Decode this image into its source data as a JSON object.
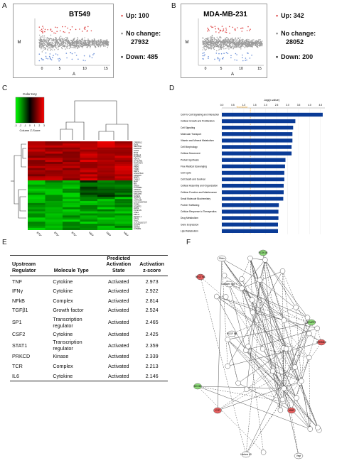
{
  "panels": {
    "A": {
      "letter": "A",
      "title": "BT549",
      "xlabel": "A",
      "ylabel": "M",
      "xticks": [
        "0",
        "5",
        "10",
        "15"
      ],
      "legend": [
        {
          "text": "Up: 100",
          "color": "#e05050"
        },
        {
          "text": "No change:",
          "color": "#888888"
        },
        {
          "text": "27932",
          "color": ""
        },
        {
          "text": "Down: 485",
          "color": "#222222"
        }
      ]
    },
    "B": {
      "letter": "B",
      "title": "MDA-MB-231",
      "xlabel": "A",
      "ylabel": "M",
      "xticks": [
        "0",
        "5",
        "10",
        "15"
      ],
      "legend": [
        {
          "text": "Up: 342",
          "color": "#e05050"
        },
        {
          "text": "No change:",
          "color": "#888888"
        },
        {
          "text": "28052",
          "color": ""
        },
        {
          "text": "Down: 200",
          "color": "#222222"
        }
      ]
    },
    "C": {
      "letter": "C",
      "color_key_title": "Color Key",
      "color_key_label": "Column Z-Score",
      "color_key_ticks": [
        "-3",
        "-2",
        "-1",
        "0",
        "1",
        "2",
        "3"
      ],
      "genes": [
        "CREB3L2",
        "EVSL",
        "NECTIN1",
        "KLHDC5",
        "LMLN",
        "MSI2",
        "DYNLL2",
        "PLPPR2",
        "ADAT1",
        "DYNLRB1",
        "RAPGAP2",
        "SNIP1",
        "PSIP1",
        "TDRD",
        "BMP2",
        "HSD17B10",
        "ADRA2C",
        "MMP3",
        "CHSL2",
        "MAP",
        "MN",
        "GNG6",
        "CYP26B1",
        "ATP10A",
        "FAM167A",
        "NRG2P8",
        "SUSD2",
        "NLRP10",
        "CORO2B",
        "LOC101927524",
        "ITGB2",
        "SCARF2",
        "LMO2",
        "PCSK1N",
        "USE1",
        "FBX11",
        "PCNA-L1",
        "EPN3",
        "GALC",
        "LOC101927277",
        "DUSP4",
        "OD460",
        "CYB4B1"
      ],
      "samples": [
        "BT549-01",
        "BT549-02",
        "BT549-03",
        "MDA-231-01",
        "MDA-231-02",
        "MDA-231-03"
      ]
    },
    "D": {
      "letter": "D",
      "axis_title": "-log(p-value)",
      "threshold_label": "Threshold",
      "xticks": [
        "0.0",
        "0.5",
        "1.0",
        "1.5",
        "2.0",
        "2.5",
        "3.0",
        "3.5",
        "4.0",
        "4.5"
      ]
    },
    "E": {
      "letter": "E",
      "headers": {
        "regulator": "Upstream Regulator",
        "type": "Molecule Type",
        "state": "Predicted Activation State",
        "zscore": "Activation z-score"
      },
      "rows": [
        {
          "regulator": "TNF",
          "type": "Cytokine",
          "state": "Activated",
          "zscore": "2.973"
        },
        {
          "regulator": "IFNγ",
          "type": "Cytokine",
          "state": "Activated",
          "zscore": "2.922"
        },
        {
          "regulator": "NFkB",
          "type": "Complex",
          "state": "Activated",
          "zscore": "2.814"
        },
        {
          "regulator": "TGFβ1",
          "type": "Growth factor",
          "state": "Activated",
          "zscore": "2.524"
        },
        {
          "regulator": "SP1",
          "type": "Transcription regulator",
          "state": "Activated",
          "zscore": "2.465"
        },
        {
          "regulator": "CSF2",
          "type": "Cytokine",
          "state": "Activated",
          "zscore": "2.425"
        },
        {
          "regulator": "STAT1",
          "type": "Transcription regulator",
          "state": "Activated",
          "zscore": "2.359"
        },
        {
          "regulator": "PRKCD",
          "type": "Kinase",
          "state": "Activated",
          "zscore": "2.339"
        },
        {
          "regulator": "TCR",
          "type": "Complex",
          "state": "Activated",
          "zscore": "2.213"
        },
        {
          "regulator": "IL6",
          "type": "Cytokine",
          "state": "Activated",
          "zscore": "2.146"
        }
      ]
    },
    "F": {
      "letter": "F",
      "nodes": [
        {
          "label": "PCSK1N",
          "kind": "green"
        },
        {
          "label": "Fibrin",
          "kind": "white"
        },
        {
          "label": "NECTIN1",
          "kind": "red"
        },
        {
          "label": "Collagen type I",
          "kind": "white"
        },
        {
          "label": "PDGF BB",
          "kind": "white"
        },
        {
          "label": "SCARF2",
          "kind": "green"
        },
        {
          "label": "CREB3L2",
          "kind": "red"
        },
        {
          "label": "DDX60",
          "kind": "green"
        },
        {
          "label": "CYP",
          "kind": "red"
        },
        {
          "label": "MMP",
          "kind": "red"
        },
        {
          "label": "Histone h3",
          "kind": "white"
        },
        {
          "label": "Vegf",
          "kind": "white"
        }
      ]
    }
  },
  "chart_data": [
    {
      "type": "bar",
      "title": "",
      "xlabel": "-log(p-value)",
      "orientation": "horizontal",
      "xlim": [
        0,
        4.7
      ],
      "threshold": 1.3,
      "categories": [
        "Cell-To-Cell Signaling and Interaction",
        "Cellular Growth and Proliferation",
        "Cell Signaling",
        "Molecular Transport",
        "Vitamin and Mineral Metabolism",
        "Cell Morphology",
        "Cellular Movement",
        "Protein Synthesis",
        "Free Radical Scavenging",
        "Cell Cycle",
        "Cell Death and Survival",
        "Cellular Assembly and Organization",
        "Cellular Function and Maintenance",
        "Small Molecule Biochemistry",
        "Protein Trafficking",
        "Cellular Response to Therapeutics",
        "Drug Metabolism",
        "Gene Expression",
        "Lipid Metabolism"
      ],
      "values": [
        4.6,
        3.35,
        3.25,
        3.22,
        3.22,
        3.18,
        3.18,
        2.9,
        2.88,
        2.85,
        2.85,
        2.82,
        2.82,
        2.8,
        2.6,
        2.58,
        2.58,
        2.56,
        2.56
      ],
      "colors": {
        "bar": "#0a3b96",
        "threshold": "#f5a623"
      }
    }
  ]
}
